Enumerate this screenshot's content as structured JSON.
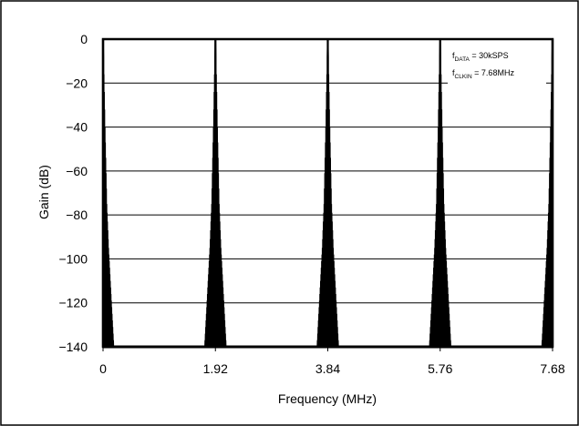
{
  "chart_data": {
    "type": "line",
    "title": "",
    "xlabel": "Frequency (MHz)",
    "ylabel": "Gain (dB)",
    "xlim": [
      0,
      7.68
    ],
    "ylim": [
      -140,
      0
    ],
    "x_ticks": [
      "0",
      "1.92",
      "3.84",
      "5.76",
      "7.68"
    ],
    "y_ticks": [
      "0",
      "−20",
      "−40",
      "−60",
      "−80",
      "−100",
      "−120",
      "−140"
    ],
    "grid": "horizontal",
    "annotation": [
      {
        "symbol": "f",
        "subscript": "DATA",
        "value": " = 30kSPS"
      },
      {
        "symbol": "f",
        "subscript": "CLKIN",
        "value": " = 7.68MHz"
      }
    ],
    "annotation_position": "top-right",
    "passband_peaks_mhz": [
      0,
      1.92,
      3.84,
      5.76,
      7.68
    ],
    "peak_gain_db": 0,
    "floor_gain_db": -140,
    "series": [
      {
        "x": [
          0.0,
          0.03,
          0.06,
          0.09,
          0.12,
          0.15,
          0.18
        ],
        "y": [
          0,
          -40,
          -75,
          -95,
          -110,
          -125,
          -140
        ]
      }
    ]
  }
}
